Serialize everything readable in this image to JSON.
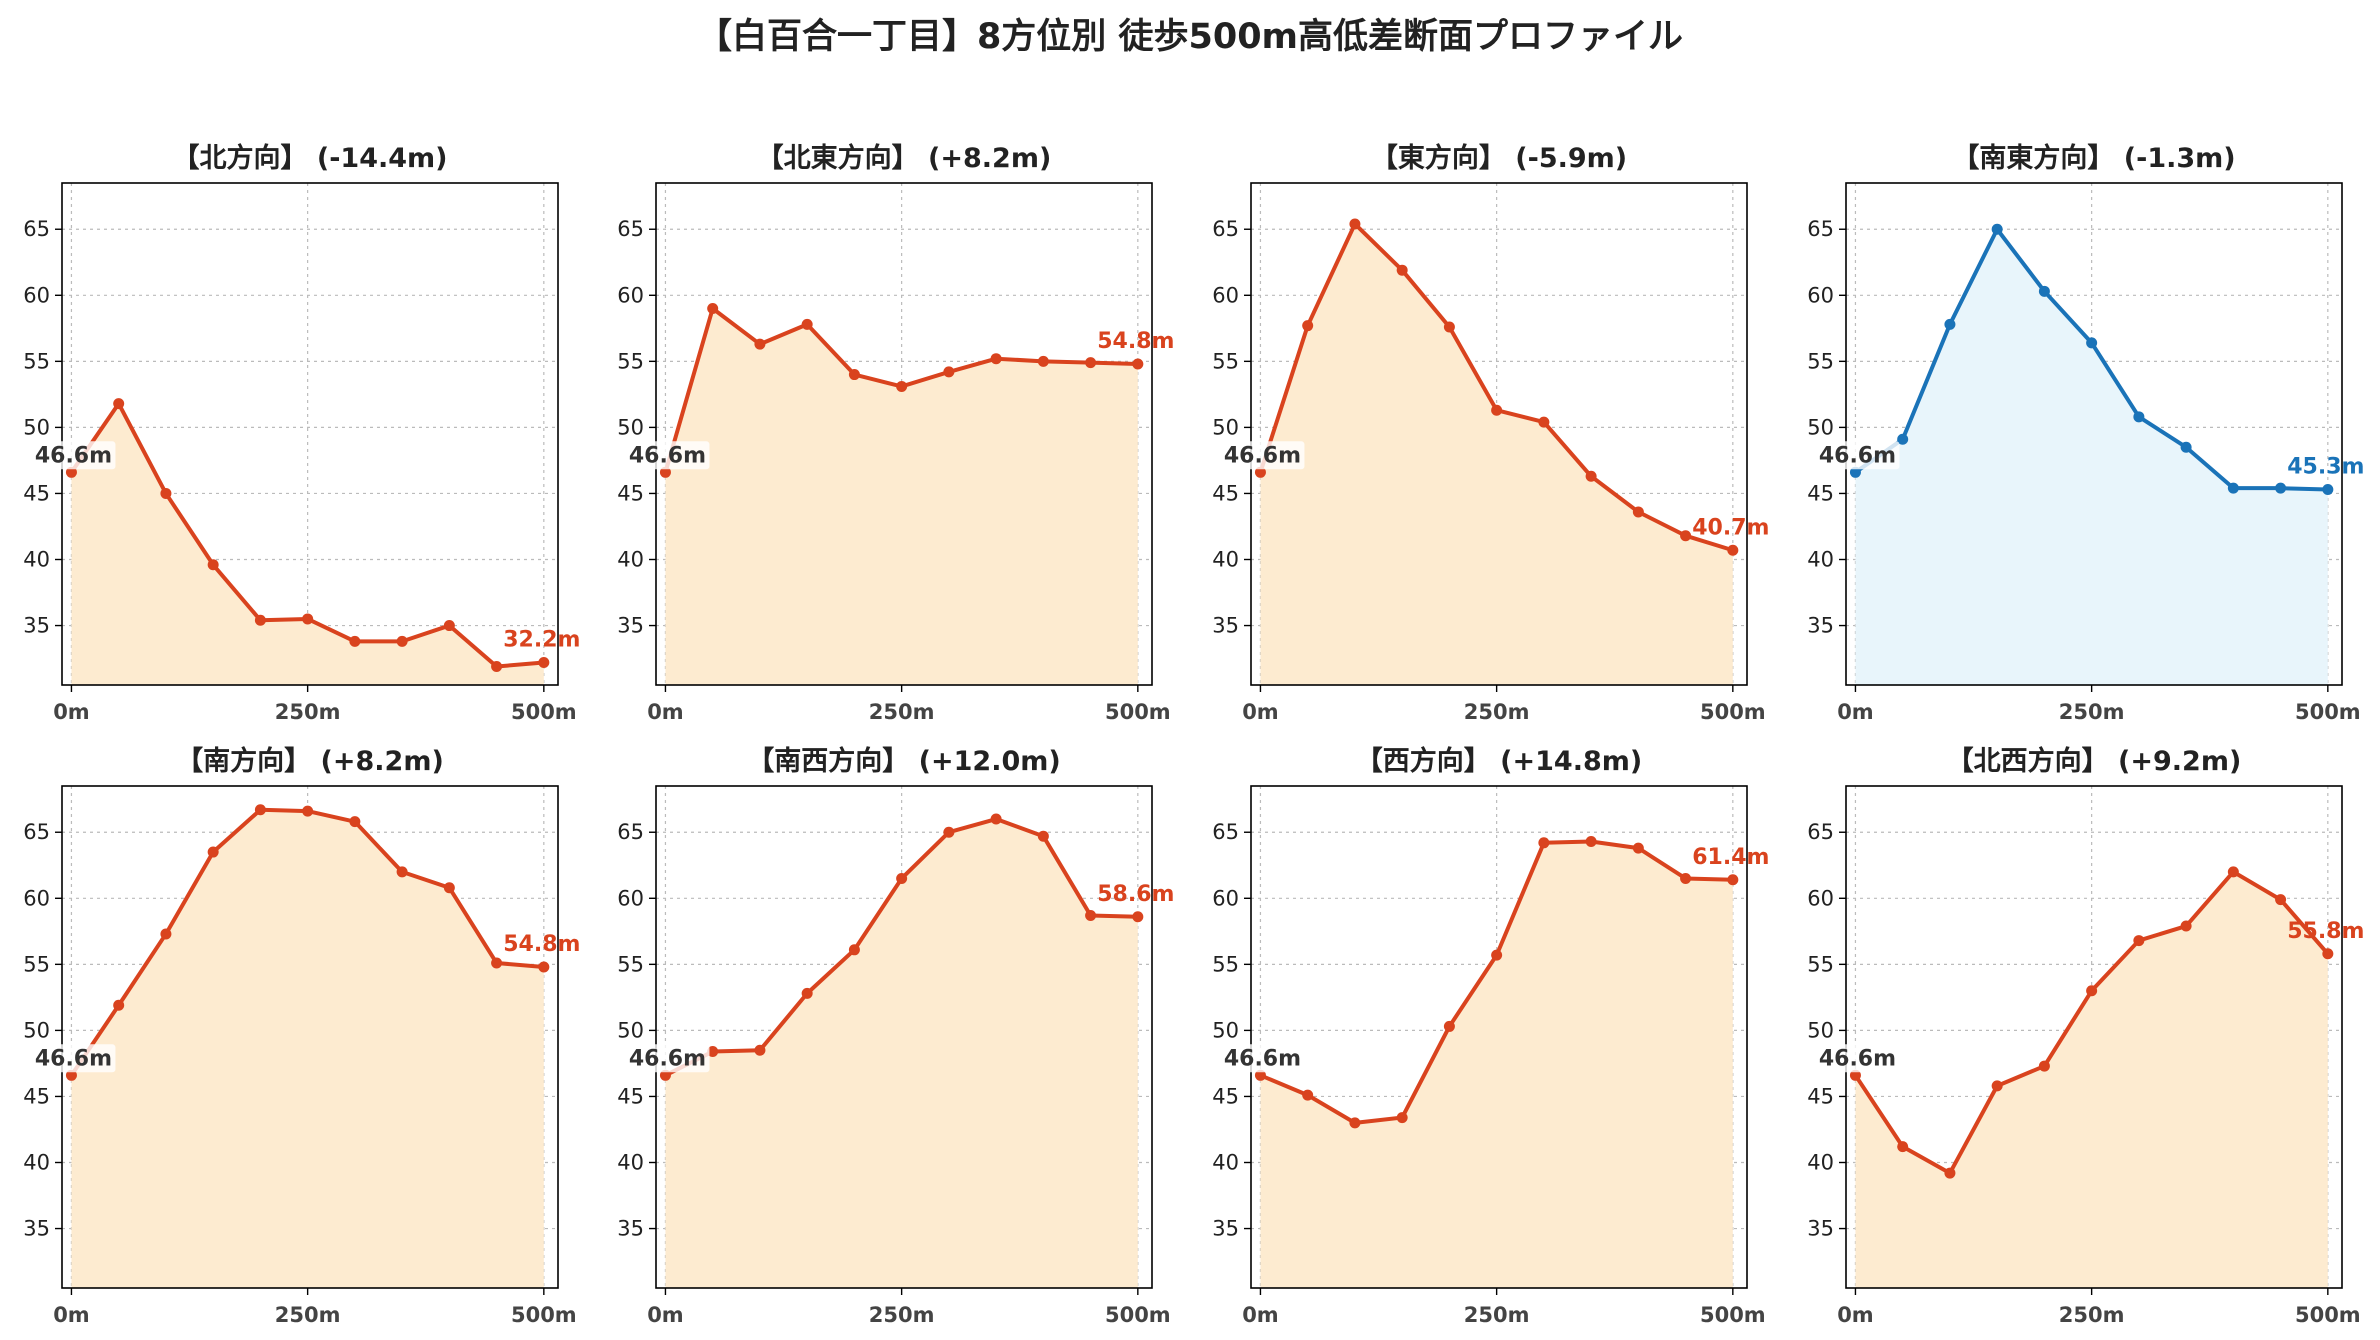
{
  "title": "【白百合一丁目】8方位別 徒歩500m高低差断面プロファイル",
  "colors": {
    "up_line": "#d9431e",
    "up_fill": "#fdebd0",
    "down_line": "#1a73b8",
    "down_fill": "#e8f5fb",
    "grid": "#bbbbbb",
    "start_label": "#333333"
  },
  "chart_data": [
    {
      "type": "line",
      "title": "【北方向】 (-14.4m)",
      "variant": "up",
      "x": [
        0,
        50,
        100,
        150,
        200,
        250,
        300,
        350,
        400,
        450,
        500
      ],
      "values": [
        46.6,
        51.8,
        45.0,
        39.6,
        35.4,
        35.5,
        33.8,
        33.8,
        35.0,
        31.9,
        32.2
      ],
      "start_label": "46.6m",
      "end_label": "32.2m",
      "ylim": [
        30.5,
        68.5
      ],
      "yticks": [
        "35",
        "40",
        "45",
        "50",
        "55",
        "60",
        "65"
      ],
      "xticks": [
        "0m",
        "250m",
        "500m"
      ],
      "grid": true
    },
    {
      "type": "line",
      "title": "【北東方向】 (+8.2m)",
      "variant": "up",
      "x": [
        0,
        50,
        100,
        150,
        200,
        250,
        300,
        350,
        400,
        450,
        500
      ],
      "values": [
        46.6,
        59.0,
        56.3,
        57.8,
        54.0,
        53.1,
        54.2,
        55.2,
        55.0,
        54.9,
        54.8
      ],
      "start_label": "46.6m",
      "end_label": "54.8m",
      "ylim": [
        30.5,
        68.5
      ],
      "yticks": [
        "35",
        "40",
        "45",
        "50",
        "55",
        "60",
        "65"
      ],
      "xticks": [
        "0m",
        "250m",
        "500m"
      ],
      "grid": true
    },
    {
      "type": "line",
      "title": "【東方向】 (-5.9m)",
      "variant": "up",
      "x": [
        0,
        50,
        100,
        150,
        200,
        250,
        300,
        350,
        400,
        450,
        500
      ],
      "values": [
        46.6,
        57.7,
        65.4,
        61.9,
        57.6,
        51.3,
        50.4,
        46.3,
        43.6,
        41.8,
        40.7
      ],
      "start_label": "46.6m",
      "end_label": "40.7m",
      "ylim": [
        30.5,
        68.5
      ],
      "yticks": [
        "35",
        "40",
        "45",
        "50",
        "55",
        "60",
        "65"
      ],
      "xticks": [
        "0m",
        "250m",
        "500m"
      ],
      "grid": true
    },
    {
      "type": "line",
      "title": "【南東方向】 (-1.3m)",
      "variant": "down",
      "x": [
        0,
        50,
        100,
        150,
        200,
        250,
        300,
        350,
        400,
        450,
        500
      ],
      "values": [
        46.6,
        49.1,
        57.8,
        65.0,
        60.3,
        56.4,
        50.8,
        48.5,
        45.4,
        45.4,
        45.3
      ],
      "start_label": "46.6m",
      "end_label": "45.3m",
      "ylim": [
        30.5,
        68.5
      ],
      "yticks": [
        "35",
        "40",
        "45",
        "50",
        "55",
        "60",
        "65"
      ],
      "xticks": [
        "0m",
        "250m",
        "500m"
      ],
      "grid": true
    },
    {
      "type": "line",
      "title": "【南方向】 (+8.2m)",
      "variant": "up",
      "x": [
        0,
        50,
        100,
        150,
        200,
        250,
        300,
        350,
        400,
        450,
        500
      ],
      "values": [
        46.6,
        51.9,
        57.3,
        63.5,
        66.7,
        66.6,
        65.8,
        62.0,
        60.8,
        55.1,
        54.8
      ],
      "start_label": "46.6m",
      "end_label": "54.8m",
      "ylim": [
        30.5,
        68.5
      ],
      "yticks": [
        "35",
        "40",
        "45",
        "50",
        "55",
        "60",
        "65"
      ],
      "xticks": [
        "0m",
        "250m",
        "500m"
      ],
      "grid": true
    },
    {
      "type": "line",
      "title": "【南西方向】 (+12.0m)",
      "variant": "up",
      "x": [
        0,
        50,
        100,
        150,
        200,
        250,
        300,
        350,
        400,
        450,
        500
      ],
      "values": [
        46.6,
        48.4,
        48.5,
        52.8,
        56.1,
        61.5,
        65.0,
        66.0,
        64.7,
        58.7,
        58.6
      ],
      "start_label": "46.6m",
      "end_label": "58.6m",
      "ylim": [
        30.5,
        68.5
      ],
      "yticks": [
        "35",
        "40",
        "45",
        "50",
        "55",
        "60",
        "65"
      ],
      "xticks": [
        "0m",
        "250m",
        "500m"
      ],
      "grid": true
    },
    {
      "type": "line",
      "title": "【西方向】 (+14.8m)",
      "variant": "up",
      "x": [
        0,
        50,
        100,
        150,
        200,
        250,
        300,
        350,
        400,
        450,
        500
      ],
      "values": [
        46.6,
        45.1,
        43.0,
        43.4,
        50.3,
        55.7,
        64.2,
        64.3,
        63.8,
        61.5,
        61.4
      ],
      "start_label": "46.6m",
      "end_label": "61.4m",
      "ylim": [
        30.5,
        68.5
      ],
      "yticks": [
        "35",
        "40",
        "45",
        "50",
        "55",
        "60",
        "65"
      ],
      "xticks": [
        "0m",
        "250m",
        "500m"
      ],
      "grid": true
    },
    {
      "type": "line",
      "title": "【北西方向】 (+9.2m)",
      "variant": "up",
      "x": [
        0,
        50,
        100,
        150,
        200,
        250,
        300,
        350,
        400,
        450,
        500
      ],
      "values": [
        46.6,
        41.2,
        39.2,
        45.8,
        47.3,
        53.0,
        56.8,
        57.9,
        62.0,
        59.9,
        55.8
      ],
      "start_label": "46.6m",
      "end_label": "55.8m",
      "ylim": [
        30.5,
        68.5
      ],
      "yticks": [
        "35",
        "40",
        "45",
        "50",
        "55",
        "60",
        "65"
      ],
      "xticks": [
        "0m",
        "250m",
        "500m"
      ],
      "grid": true
    }
  ]
}
